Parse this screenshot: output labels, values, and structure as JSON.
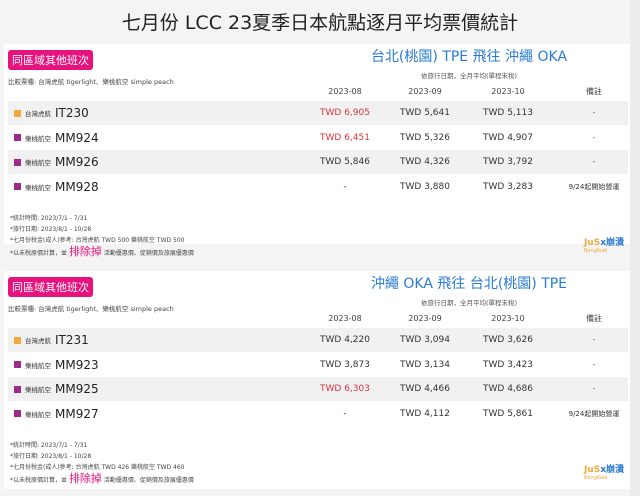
{
  "page_title": "七月份 LCC 23夏季日本航點逐月平均票價統計",
  "colors": {
    "tigerair": "#f4a83a",
    "peach": "#9b2a8a",
    "badge": "#e8127c",
    "route": "#2a7bd4",
    "highlight_red": "#d9333f"
  },
  "logo": {
    "text": "JusX崩潰",
    "sub": "BengKuei"
  },
  "sections": [
    {
      "badge": "同區域其他班次",
      "route": "台北(桃園) TPE 飛往 沖繩 OKA",
      "subtitle": "依旅行日期，全月平均(單程未稅)",
      "compare": "比較票種: 台灣虎航 tigerlight、樂桃航空 simple peach",
      "headers": [
        "2023-08",
        "2023-09",
        "2023-10",
        "備註"
      ],
      "rows": [
        {
          "airline": "台灣虎航",
          "flight": "IT230",
          "color": "tigerair",
          "values": [
            "TWD 6,905",
            "TWD 5,641",
            "TWD 5,113"
          ],
          "note": "-",
          "red": [
            true,
            false,
            false
          ]
        },
        {
          "airline": "樂桃航空",
          "flight": "MM924",
          "color": "peach",
          "values": [
            "TWD 6,451",
            "TWD 5,326",
            "TWD 4,907"
          ],
          "note": "-",
          "red": [
            true,
            false,
            false
          ]
        },
        {
          "airline": "樂桃航空",
          "flight": "MM926",
          "color": "peach",
          "values": [
            "TWD 5,846",
            "TWD 4,326",
            "TWD 3,792"
          ],
          "note": "-",
          "red": [
            false,
            false,
            false
          ]
        },
        {
          "airline": "樂桃航空",
          "flight": "MM928",
          "color": "peach",
          "values": [
            "-",
            "TWD 3,880",
            "TWD 3,283"
          ],
          "note": "9/24起開始營運",
          "red": [
            false,
            false,
            false
          ]
        }
      ],
      "notes": [
        "*統計時間: 2023/7/1 - 7/31",
        "*旅行日期: 2023/8/1 - 10/28",
        "*七月份稅金(成人)參考: 台灣虎航 TWD 500 樂桃航空 TWD 500"
      ],
      "last_note": {
        "pre": "*以未稅原價計算，並",
        "highlight": "排除掉",
        "post": "活動優惠價、促銷價及旅展優惠價"
      }
    },
    {
      "badge": "同區域其他班次",
      "route": "沖繩 OKA 飛往 台北(桃園) TPE",
      "subtitle": "依旅行日期，全月平均(單程未稅)",
      "compare": "比較票種: 台灣虎航 tigerlight、樂桃航空 simple peach",
      "headers": [
        "2023-08",
        "2023-09",
        "2023-10",
        "備註"
      ],
      "rows": [
        {
          "airline": "台灣虎航",
          "flight": "IT231",
          "color": "tigerair",
          "values": [
            "TWD 4,220",
            "TWD 3,094",
            "TWD 3,626"
          ],
          "note": "-",
          "red": [
            false,
            false,
            false
          ]
        },
        {
          "airline": "樂桃航空",
          "flight": "MM923",
          "color": "peach",
          "values": [
            "TWD 3,873",
            "TWD 3,134",
            "TWD 3,423"
          ],
          "note": "-",
          "red": [
            false,
            false,
            false
          ]
        },
        {
          "airline": "樂桃航空",
          "flight": "MM925",
          "color": "peach",
          "values": [
            "TWD 6,303",
            "TWD 4,466",
            "TWD 4,686"
          ],
          "note": "-",
          "red": [
            true,
            false,
            false
          ]
        },
        {
          "airline": "樂桃航空",
          "flight": "MM927",
          "color": "peach",
          "values": [
            "-",
            "TWD 4,112",
            "TWD 5,861"
          ],
          "note": "9/24起開始營運",
          "red": [
            false,
            false,
            false
          ]
        }
      ],
      "notes": [
        "*統計時間: 2023/7/1 - 7/31",
        "*旅行日期: 2023/8/1 - 10/28",
        "*七月份稅金(成人)參考: 台灣虎航 TWD 426 樂桃航空 TWD 460"
      ],
      "last_note": {
        "pre": "*以未稅原價計算，並",
        "highlight": "排除掉",
        "post": "活動優惠價、促銷價及旅展優惠價"
      }
    }
  ]
}
